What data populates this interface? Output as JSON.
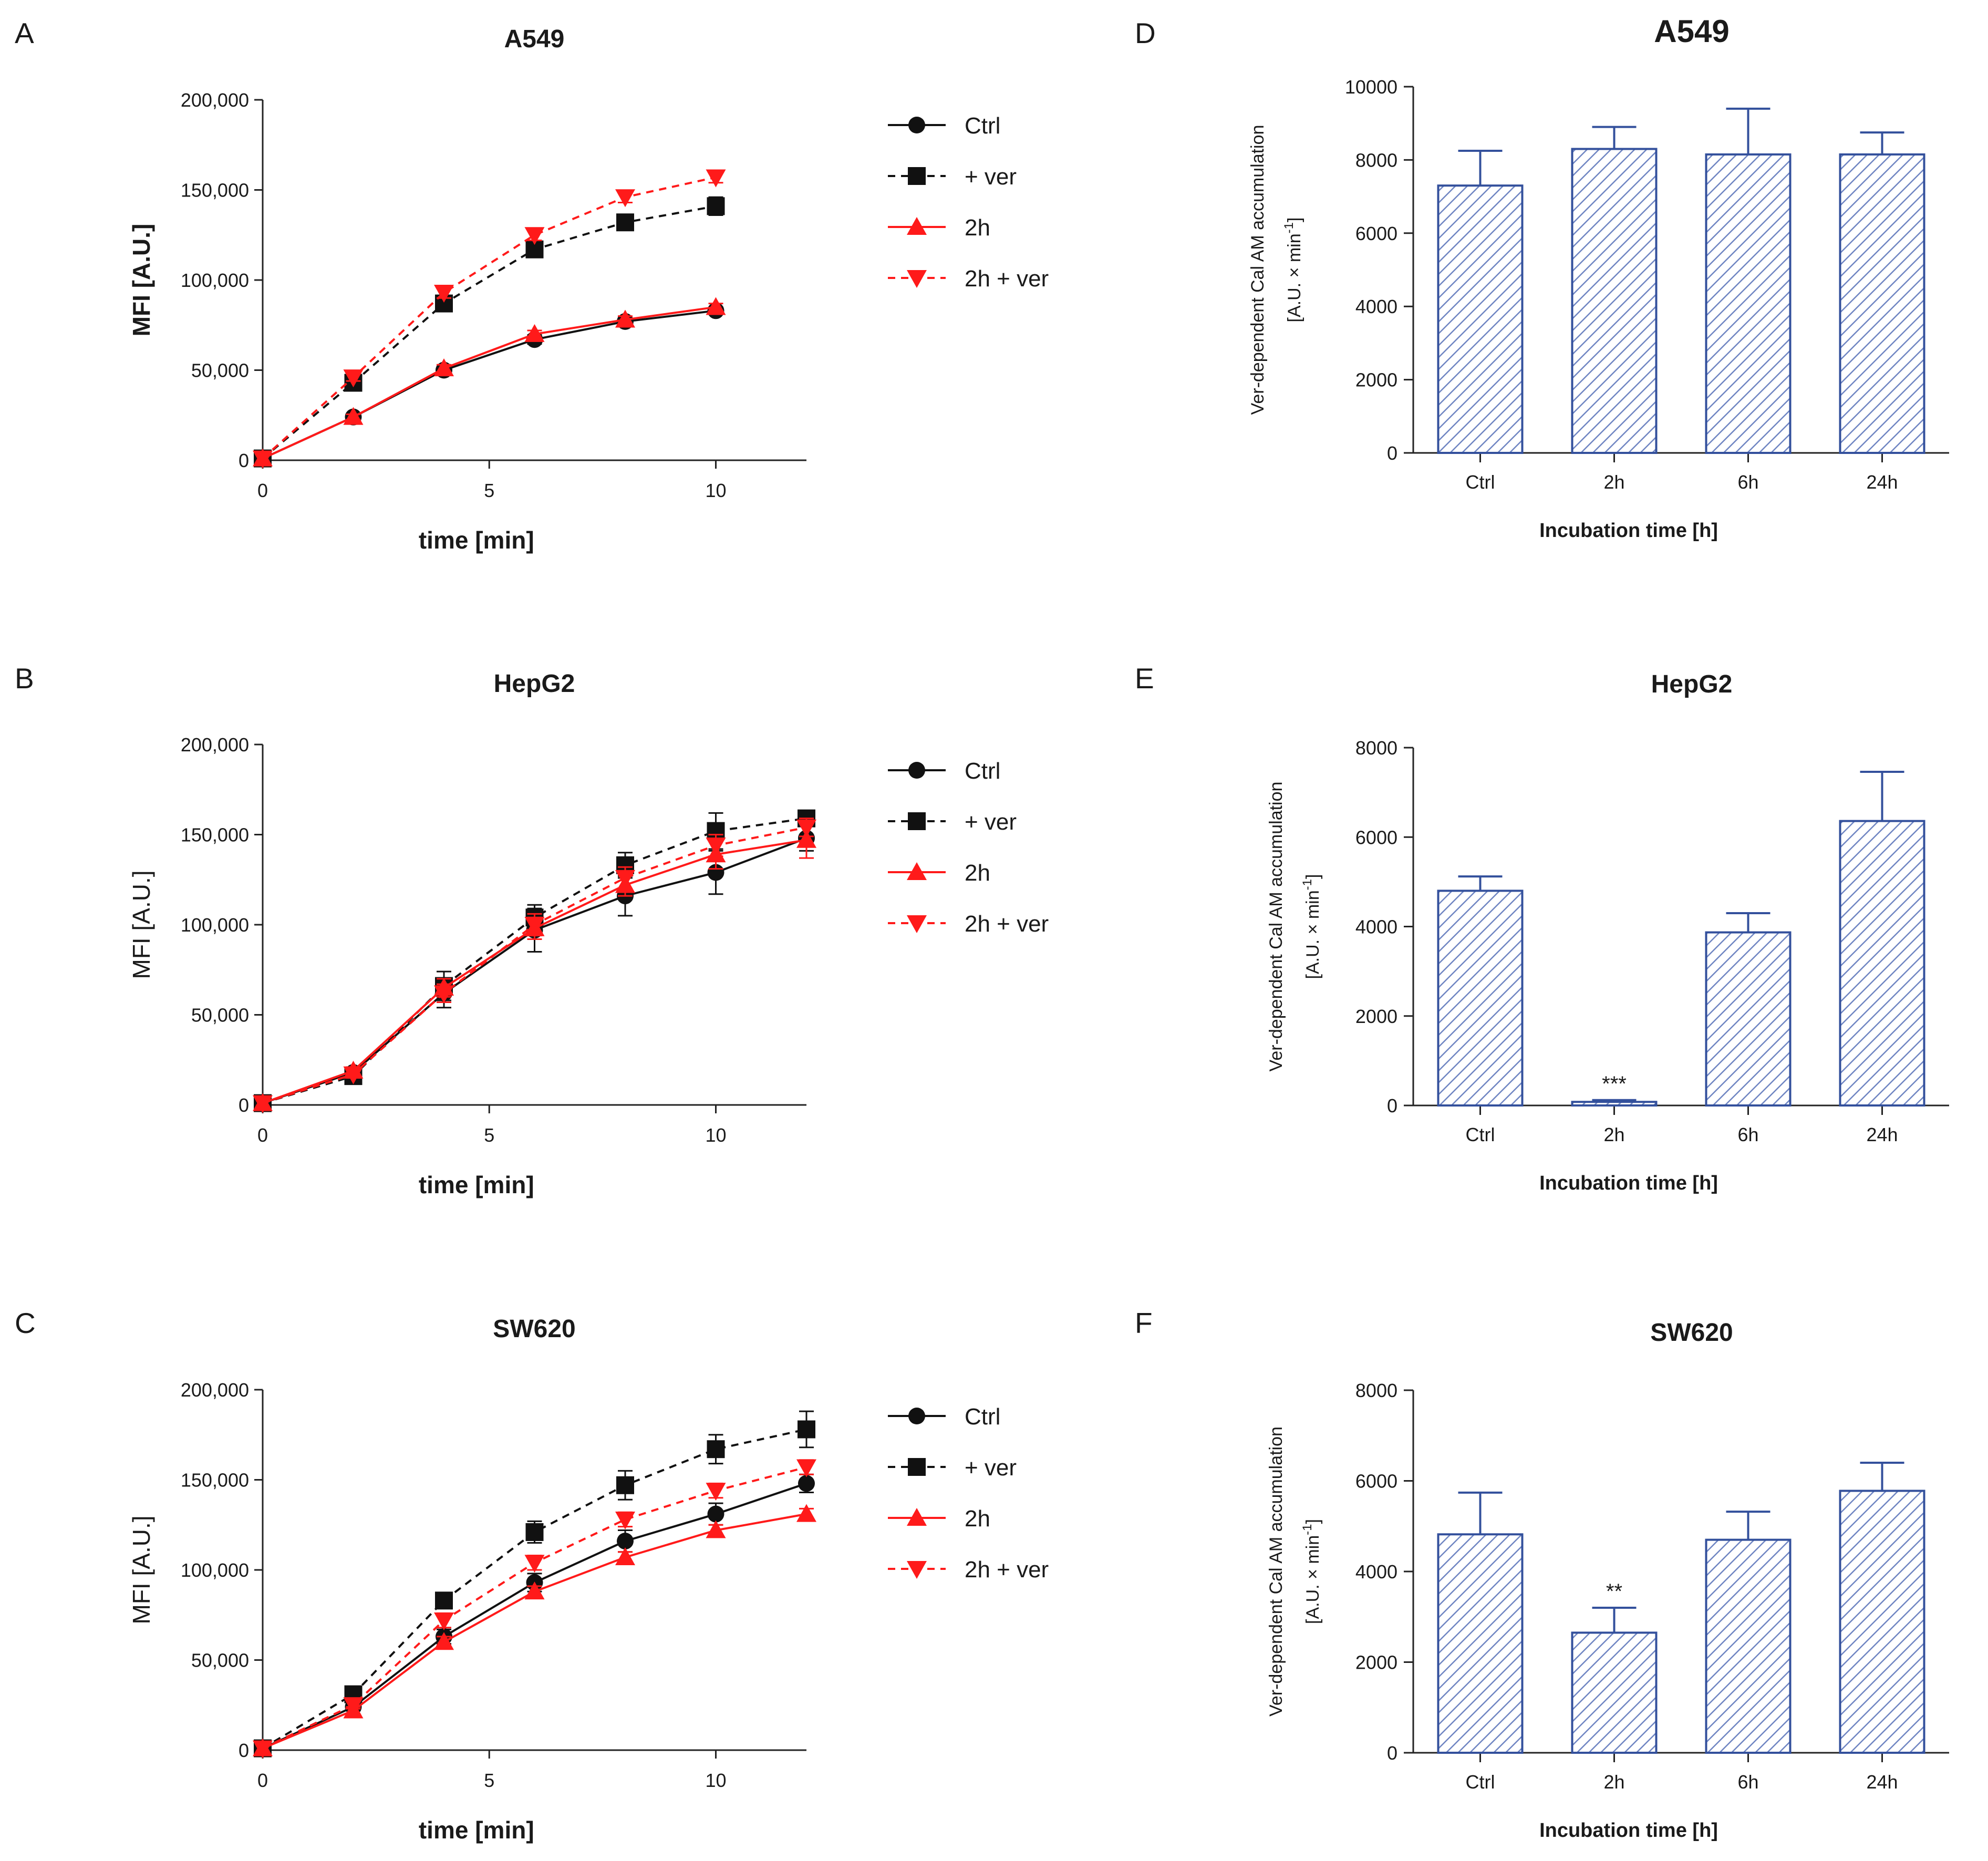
{
  "figure": {
    "colors": {
      "black": "#111111",
      "red": "#ff1a1a",
      "bar_outline": "#33509c",
      "bar_hatch": "#6f85c2"
    }
  },
  "chart_data": [
    {
      "id": "A",
      "letter": "A",
      "type": "line",
      "title": "A549",
      "xlabel": "time [min]",
      "ylabel": "MFI [A.U.]",
      "ylabel_bold": true,
      "xlim": [
        0,
        12
      ],
      "ylim": [
        0,
        200000
      ],
      "xticks": [
        0,
        5,
        10
      ],
      "xtick_labels": [
        "0",
        "5",
        "10"
      ],
      "yticks": [
        0,
        50000,
        100000,
        150000,
        200000
      ],
      "ytick_labels": [
        "0",
        "50,000",
        "100,000",
        "150,000",
        "200,000"
      ],
      "legend": [
        "Ctrl",
        "+ ver",
        "2h",
        "2h + ver"
      ],
      "series": [
        {
          "name": "Ctrl",
          "color": "black",
          "dashed": false,
          "marker": "circle",
          "x": [
            0,
            2,
            4,
            6,
            8,
            10
          ],
          "y": [
            1000,
            24000,
            50000,
            67000,
            77000,
            83000
          ],
          "err": [
            0,
            1500,
            2000,
            2500,
            2000,
            2000
          ]
        },
        {
          "name": "+ ver",
          "color": "black",
          "dashed": true,
          "marker": "square",
          "x": [
            0,
            2,
            4,
            6,
            8,
            10
          ],
          "y": [
            1000,
            43000,
            87000,
            117000,
            132000,
            141000
          ],
          "err": [
            0,
            2000,
            3000,
            3000,
            3000,
            5000
          ]
        },
        {
          "name": "2h",
          "color": "red",
          "dashed": false,
          "marker": "triangle-up",
          "x": [
            0,
            2,
            4,
            6,
            8,
            10
          ],
          "y": [
            1000,
            24000,
            51000,
            70000,
            78000,
            85000
          ],
          "err": [
            0,
            1500,
            2000,
            2000,
            2000,
            2000
          ]
        },
        {
          "name": "2h + ver",
          "color": "red",
          "dashed": true,
          "marker": "triangle-down",
          "x": [
            0,
            2,
            4,
            6,
            8,
            10
          ],
          "y": [
            1000,
            46000,
            93000,
            125000,
            146000,
            157000
          ],
          "err": [
            0,
            2000,
            3000,
            3000,
            3000,
            3000
          ]
        }
      ]
    },
    {
      "id": "B",
      "letter": "B",
      "type": "line",
      "title": "HepG2",
      "xlabel": "time [min]",
      "ylabel": "MFI [A.U.]",
      "ylabel_bold": false,
      "xlim": [
        0,
        12
      ],
      "ylim": [
        0,
        200000
      ],
      "xticks": [
        0,
        5,
        10
      ],
      "xtick_labels": [
        "0",
        "5",
        "10"
      ],
      "yticks": [
        0,
        50000,
        100000,
        150000,
        200000
      ],
      "ytick_labels": [
        "0",
        "50,000",
        "100,000",
        "150,000",
        "200,000"
      ],
      "legend": [
        "Ctrl",
        "+ ver",
        "2h",
        "2h + ver"
      ],
      "series": [
        {
          "name": "Ctrl",
          "color": "black",
          "dashed": false,
          "marker": "circle",
          "x": [
            0,
            2,
            4,
            6,
            8,
            10,
            12
          ],
          "y": [
            1000,
            18000,
            62000,
            97000,
            116000,
            129000,
            148000
          ],
          "err": [
            0,
            2000,
            8000,
            12000,
            11000,
            12000,
            7000
          ]
        },
        {
          "name": "+ ver",
          "color": "black",
          "dashed": true,
          "marker": "square",
          "x": [
            0,
            2,
            4,
            6,
            8,
            10,
            12
          ],
          "y": [
            1000,
            16000,
            66000,
            104000,
            133000,
            152000,
            159000
          ],
          "err": [
            0,
            2000,
            8000,
            7000,
            7000,
            10000,
            3000
          ]
        },
        {
          "name": "2h",
          "color": "red",
          "dashed": false,
          "marker": "triangle-up",
          "x": [
            0,
            2,
            4,
            6,
            8,
            10,
            12
          ],
          "y": [
            1000,
            19000,
            65000,
            98000,
            122000,
            139000,
            147000
          ],
          "err": [
            0,
            2000,
            5000,
            6000,
            6000,
            8000,
            10000
          ]
        },
        {
          "name": "2h + ver",
          "color": "red",
          "dashed": true,
          "marker": "triangle-down",
          "x": [
            0,
            2,
            4,
            6,
            8,
            10,
            12
          ],
          "y": [
            1000,
            17000,
            62000,
            100000,
            126000,
            144000,
            154000
          ],
          "err": [
            0,
            2000,
            5000,
            6000,
            6000,
            6000,
            5000
          ]
        }
      ]
    },
    {
      "id": "C",
      "letter": "C",
      "type": "line",
      "title": "SW620",
      "xlabel": "time [min]",
      "ylabel": "MFI [A.U.]",
      "ylabel_bold": false,
      "xlim": [
        0,
        12
      ],
      "ylim": [
        0,
        200000
      ],
      "xticks": [
        0,
        5,
        10
      ],
      "xtick_labels": [
        "0",
        "5",
        "10"
      ],
      "yticks": [
        0,
        50000,
        100000,
        150000,
        200000
      ],
      "ytick_labels": [
        "0",
        "50,000",
        "100,000",
        "150,000",
        "200,000"
      ],
      "legend": [
        "Ctrl",
        "+ ver",
        "2h",
        "2h + ver"
      ],
      "series": [
        {
          "name": "Ctrl",
          "color": "black",
          "dashed": false,
          "marker": "circle",
          "x": [
            0,
            2,
            4,
            6,
            8,
            10,
            12
          ],
          "y": [
            1000,
            24000,
            63000,
            93000,
            116000,
            131000,
            148000
          ],
          "err": [
            0,
            2000,
            4000,
            5000,
            6000,
            6000,
            5000
          ]
        },
        {
          "name": "+ ver",
          "color": "black",
          "dashed": true,
          "marker": "square",
          "x": [
            0,
            2,
            4,
            6,
            8,
            10,
            12
          ],
          "y": [
            1000,
            31000,
            83000,
            121000,
            147000,
            167000,
            178000
          ],
          "err": [
            0,
            3000,
            4000,
            6000,
            8000,
            8000,
            10000
          ]
        },
        {
          "name": "2h",
          "color": "red",
          "dashed": false,
          "marker": "triangle-up",
          "x": [
            0,
            2,
            4,
            6,
            8,
            10,
            12
          ],
          "y": [
            1000,
            22000,
            60000,
            88000,
            107000,
            122000,
            131000
          ],
          "err": [
            0,
            2000,
            3000,
            3000,
            3000,
            3000,
            3000
          ]
        },
        {
          "name": "2h + ver",
          "color": "red",
          "dashed": true,
          "marker": "triangle-down",
          "x": [
            0,
            2,
            4,
            6,
            8,
            10,
            12
          ],
          "y": [
            1000,
            25000,
            72000,
            104000,
            128000,
            144000,
            157000
          ],
          "err": [
            0,
            2000,
            4000,
            4000,
            4000,
            4000,
            4000
          ]
        }
      ]
    },
    {
      "id": "D",
      "letter": "D",
      "type": "bar",
      "title": "A549",
      "title_big": true,
      "xlabel": "Incubation time [h]",
      "ylabel_line1": "Ver-dependent Cal AM accumulation",
      "ylabel_line2": "[A.U. × min",
      "ylabel_sup": "-1",
      "ylabel_close": "]",
      "ylim": [
        0,
        10000
      ],
      "yticks": [
        0,
        2000,
        4000,
        6000,
        8000,
        10000
      ],
      "ytick_labels": [
        "0",
        "2000",
        "4000",
        "6000",
        "8000",
        "10000"
      ],
      "categories": [
        "Ctrl",
        "2h",
        "6h",
        "24h"
      ],
      "values": [
        7300,
        8300,
        8150,
        8150
      ],
      "err": [
        950,
        600,
        1250,
        600
      ],
      "sig": [
        "",
        "",
        "",
        ""
      ]
    },
    {
      "id": "E",
      "letter": "E",
      "type": "bar",
      "title": "HepG2",
      "title_big": false,
      "xlabel": "Incubation time [h]",
      "ylabel_line1": "Ver-dependent Cal AM accumulation",
      "ylabel_line2": "[A.U. × min",
      "ylabel_sup": "-1",
      "ylabel_close": "]",
      "ylim": [
        0,
        8000
      ],
      "yticks": [
        0,
        2000,
        4000,
        6000,
        8000
      ],
      "ytick_labels": [
        "0",
        "2000",
        "4000",
        "6000",
        "8000"
      ],
      "categories": [
        "Ctrl",
        "2h",
        "6h",
        "24h"
      ],
      "values": [
        4800,
        80,
        3870,
        6360
      ],
      "err": [
        320,
        40,
        430,
        1100
      ],
      "sig": [
        "",
        "***",
        "",
        ""
      ]
    },
    {
      "id": "F",
      "letter": "F",
      "type": "bar",
      "title": "SW620",
      "title_big": false,
      "xlabel": "Incubation time [h]",
      "ylabel_line1": "Ver-dependent Cal AM accumulation",
      "ylabel_line2": "[A.U. × min",
      "ylabel_sup": "-1",
      "ylabel_close": "]",
      "ylim": [
        0,
        8000
      ],
      "yticks": [
        0,
        2000,
        4000,
        6000,
        8000
      ],
      "ytick_labels": [
        "0",
        "2000",
        "4000",
        "6000",
        "8000"
      ],
      "categories": [
        "Ctrl",
        "2h",
        "6h",
        "24h"
      ],
      "values": [
        4820,
        2650,
        4700,
        5780
      ],
      "err": [
        920,
        550,
        620,
        620
      ],
      "sig": [
        "",
        "**",
        "",
        ""
      ]
    }
  ]
}
